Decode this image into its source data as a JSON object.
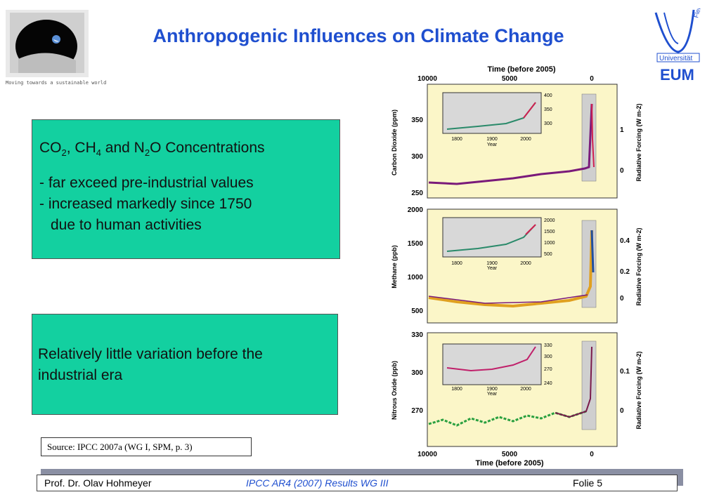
{
  "header": {
    "title": "Anthropogenic Influences on Climate Change",
    "left_logo_caption": "Moving towards a sustainable world",
    "right_logo": {
      "text_top": "Flensburg",
      "text_mid": "Universität",
      "text_bottom": "EUM",
      "color": "#1f4fcf"
    }
  },
  "box1": {
    "heading": [
      "CO",
      "2",
      ", CH",
      "4",
      " and N",
      "2",
      "O Concentrations"
    ],
    "line1": "- far exceed pre-industrial values",
    "line2": "- increased markedly since 1750",
    "line3": "due to human activities"
  },
  "box2": {
    "text": "Relatively little variation before the industrial era"
  },
  "source": "Source: IPCC 2007a (WG I, SPM, p. 3)",
  "footer": {
    "author": "Prof. Dr. Olav Hohmeyer",
    "center": "IPCC AR4 (2007) Results WG III",
    "slide": "Folie 5"
  },
  "figure": {
    "top_axis_title": "Time (before 2005)",
    "bottom_axis_title": "Time (before 2005)",
    "time_ticks": [
      "10000",
      "5000",
      "0"
    ],
    "panels": [
      {
        "ylabel": "Carbon Dioxide (ppm)",
        "yticks": [
          "350",
          "300",
          "250"
        ],
        "rlabel": "Radiative Forcing (W m-2)",
        "rticks": [
          "1",
          "0"
        ],
        "inset_yticks": [
          "400",
          "350",
          "300"
        ],
        "inset_xticks": [
          "1800",
          "1900",
          "2000"
        ],
        "inset_xlabel": "Year"
      },
      {
        "ylabel": "Methane (ppb)",
        "yticks": [
          "2000",
          "1500",
          "1000",
          "500"
        ],
        "rlabel": "Radiative Forcing (W m-2)",
        "rticks": [
          "0.4",
          "0.2",
          "0"
        ],
        "inset_yticks": [
          "2000",
          "1500",
          "1000",
          "500"
        ],
        "inset_xticks": [
          "1800",
          "1900",
          "2000"
        ],
        "inset_xlabel": "Year"
      },
      {
        "ylabel": "Nitrous Oxide (ppb)",
        "yticks": [
          "330",
          "300",
          "270"
        ],
        "rlabel": "Radiative Forcing (W m-2)",
        "rticks": [
          "0.1",
          "0"
        ],
        "inset_yticks": [
          "330",
          "300",
          "270",
          "240"
        ],
        "inset_xticks": [
          "1800",
          "1900",
          "2000"
        ],
        "inset_xlabel": "Year"
      }
    ]
  }
}
